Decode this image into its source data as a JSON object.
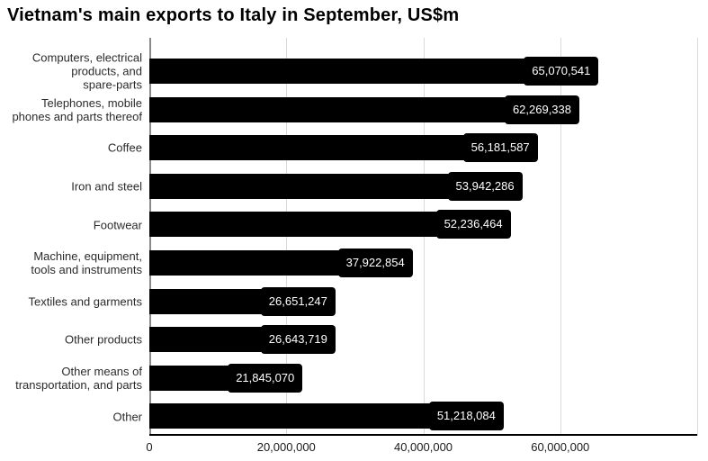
{
  "chart_data": {
    "type": "bar",
    "orientation": "horizontal",
    "title": "Vietnam's main exports to Italy in September, US$m",
    "categories": [
      "Computers, electrical\nproducts, and\nspare-parts",
      "Telephones, mobile\nphones and parts thereof",
      "Coffee",
      "Iron and steel",
      "Footwear",
      "Machine, equipment,\ntools and instruments",
      "Textiles and garments",
      "Other products",
      "Other means of\ntransportation, and parts",
      "Other"
    ],
    "values": [
      65070541,
      62269338,
      56181587,
      53942286,
      52236464,
      37922854,
      26651247,
      26643719,
      21845070,
      51218084
    ],
    "value_labels": [
      "65,070,541",
      "62,269,338",
      "56,181,587",
      "53,942,286",
      "52,236,464",
      "37,922,854",
      "26,651,247",
      "26,643,719",
      "21,845,070",
      "51,218,084"
    ],
    "xlabel": "",
    "ylabel": "",
    "xlim": [
      0,
      80000000
    ],
    "x_axis": {
      "tick_values": [
        0,
        20000000,
        40000000,
        60000000
      ],
      "tick_labels": [
        "0",
        "20,000,000",
        "40,000,000",
        "60,000,000"
      ]
    },
    "grid": true,
    "legend": false,
    "colors": {
      "bar": "#000000",
      "value_label_text": "#ffffff",
      "gridline": "#d9d9d9",
      "axis_line": "#000000",
      "zero_line": "#8a8a8a",
      "label_text": "#2b2b2b",
      "background": "#ffffff"
    }
  }
}
